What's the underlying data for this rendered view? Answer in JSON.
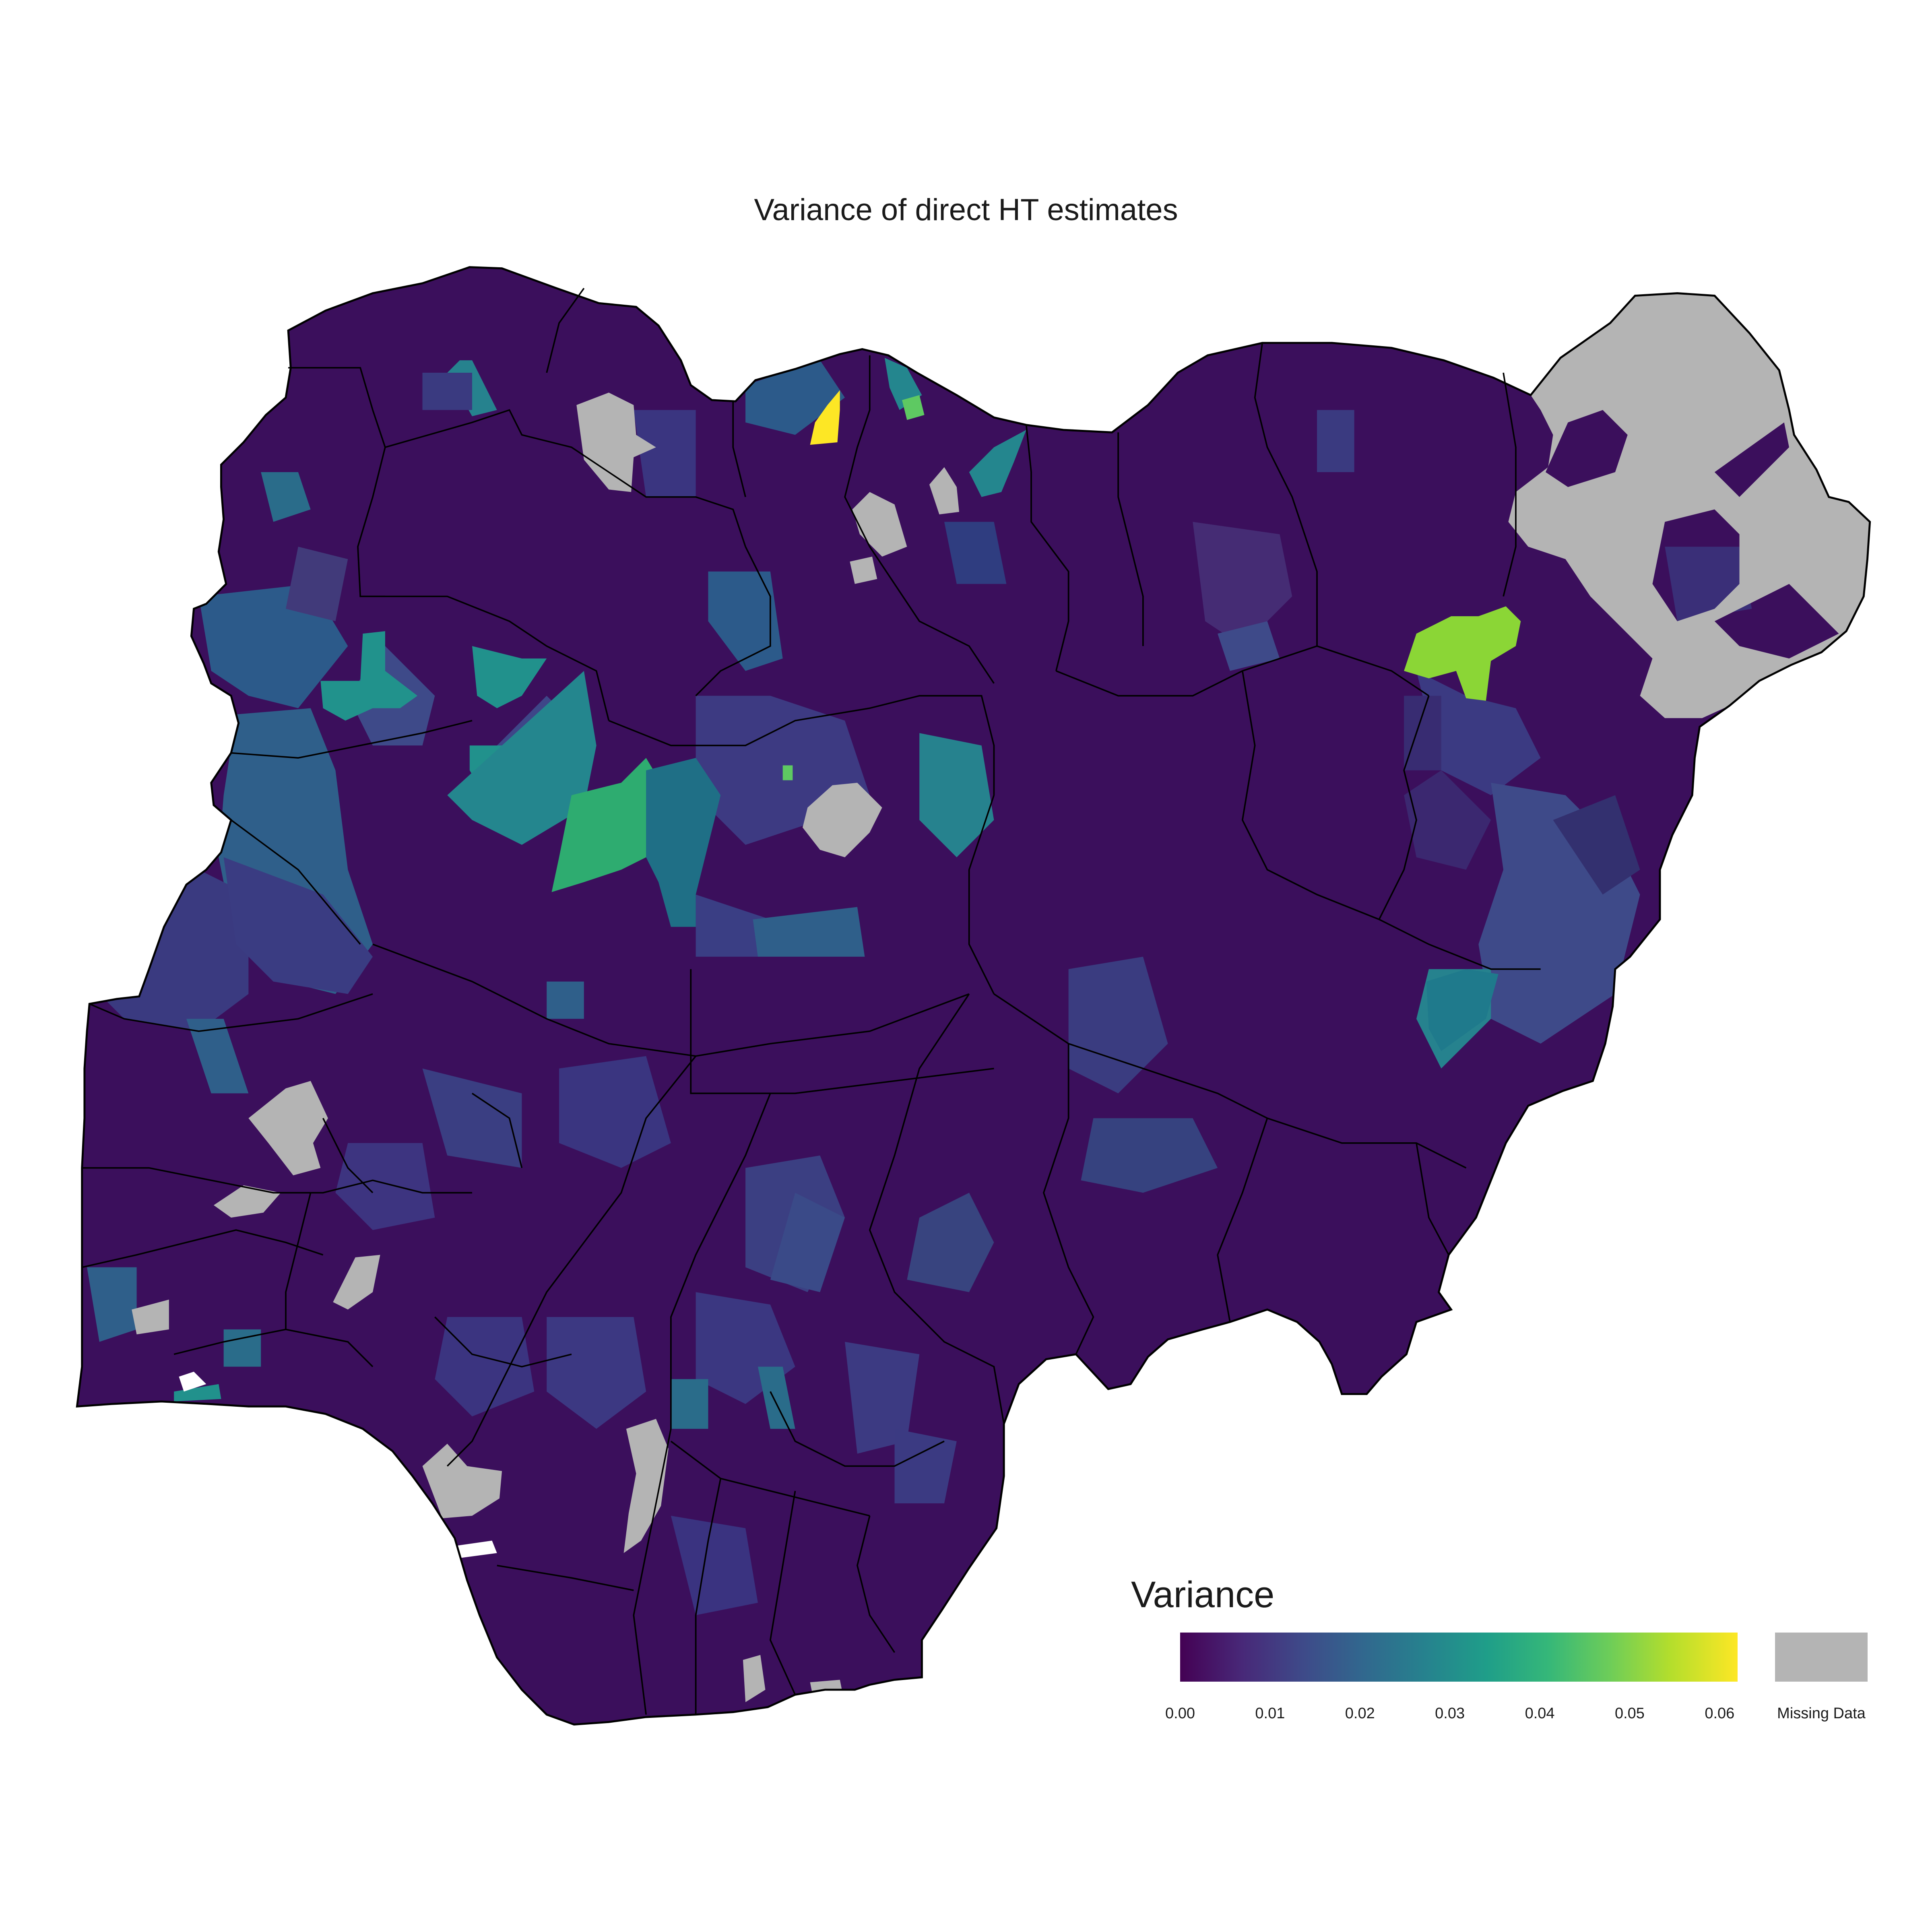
{
  "title": "Variance of direct HT estimates",
  "legend": {
    "title": "Variance",
    "ticks": [
      "0.00",
      "0.01",
      "0.02",
      "0.03",
      "0.04",
      "0.05",
      "0.06"
    ],
    "missing_label": "Missing Data",
    "scale": "viridis",
    "range": [
      0,
      0.062
    ],
    "colors": [
      "#440154",
      "#482878",
      "#3E4A89",
      "#31688E",
      "#26828E",
      "#1F9E89",
      "#35B779",
      "#6DCD59",
      "#B4DE2C",
      "#FDE725"
    ],
    "missing_color": "#b4b4b4"
  },
  "map": {
    "country": "Nigeria",
    "base_color": "#3b0f5c",
    "border_color": "#000000"
  }
}
